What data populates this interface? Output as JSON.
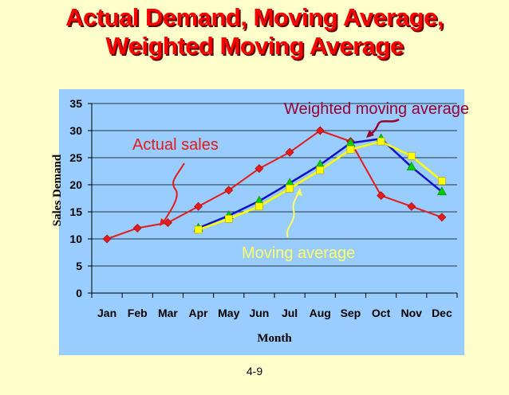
{
  "title_lines": [
    "Actual Demand, Moving Average,",
    "Weighted Moving Average"
  ],
  "slide_number": "4-9",
  "colors": {
    "background": "#ffffcc",
    "plot_area": "#99ccff",
    "title": "#ff0000",
    "actual": "#e41b1b",
    "moving_average": "#1010cc",
    "weighted_moving_average": "#ffff00",
    "ma_marker": "#00cc00"
  },
  "chart_data": {
    "type": "line",
    "title": "Actual Demand, Moving Average, Weighted Moving Average",
    "xlabel": "Month",
    "ylabel": "Sales Demand",
    "categories": [
      "Jan",
      "Feb",
      "Mar",
      "Apr",
      "May",
      "Jun",
      "Jul",
      "Aug",
      "Sep",
      "Oct",
      "Nov",
      "Dec"
    ],
    "ylim": [
      0,
      35
    ],
    "yticks": [
      0,
      5,
      10,
      15,
      20,
      25,
      30,
      35
    ],
    "grid": true,
    "series": [
      {
        "name": "Actual sales",
        "values": [
          10,
          12,
          13,
          16,
          19,
          23,
          26,
          30,
          28,
          18,
          16,
          14
        ]
      },
      {
        "name": "Moving average",
        "values": [
          null,
          null,
          null,
          12,
          14.3,
          17,
          20.3,
          23.7,
          27.7,
          28.5,
          23.3,
          18.7
        ]
      },
      {
        "name": "Weighted moving average",
        "values": [
          null,
          null,
          null,
          11.7,
          13.7,
          16,
          19.3,
          22.7,
          26.5,
          28,
          25.3,
          20.7
        ]
      }
    ],
    "annotations": [
      "Actual sales",
      "Moving average",
      "Weighted moving average"
    ]
  }
}
